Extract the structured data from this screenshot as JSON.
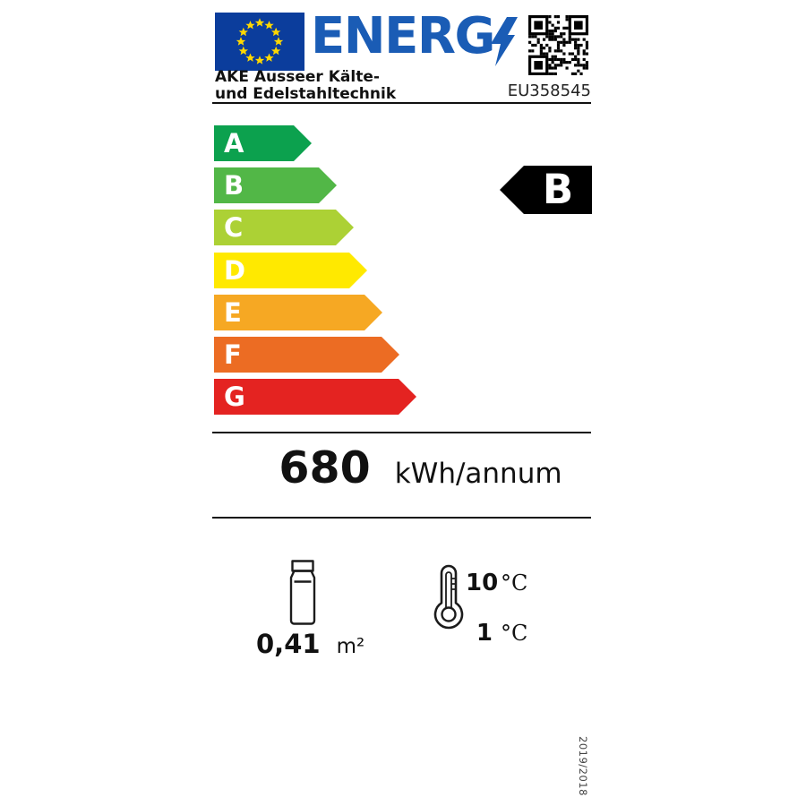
{
  "header": {
    "brand": "ENERG",
    "supplier_line1": "AKE Ausseer Kälte-",
    "supplier_line2": "und Edelstahltechnik",
    "model": "EU358545"
  },
  "scale": {
    "classes": [
      {
        "label": "A",
        "color": "#0ca14e"
      },
      {
        "label": "B",
        "color": "#52b747"
      },
      {
        "label": "C",
        "color": "#acd135"
      },
      {
        "label": "D",
        "color": "#ffe900"
      },
      {
        "label": "E",
        "color": "#f6a823"
      },
      {
        "label": "F",
        "color": "#ec6c23"
      },
      {
        "label": "G",
        "color": "#e42321"
      }
    ]
  },
  "rating": {
    "label": "B",
    "color": "#000000"
  },
  "consumption": {
    "value": "680",
    "unit": "kWh/annum"
  },
  "features": {
    "area": {
      "value": "0,41",
      "unit": "m²"
    },
    "temperature_upper": {
      "value": "10",
      "unit": "°C"
    },
    "temperature_lower": {
      "value": "1",
      "unit": "°C"
    }
  },
  "regulation": "2019/2018",
  "colors": {
    "flag_blue": "#0b3d9c",
    "star_yellow": "#ffd800",
    "logo_blue": "#1a5cb5",
    "ink": "#111111"
  },
  "icons": {
    "flag": "eu-flag-icon",
    "bolt": "lightning-bolt-icon",
    "qr": "qr-code-icon",
    "bottle": "bottle-icon",
    "thermometer": "thermometer-icon"
  }
}
